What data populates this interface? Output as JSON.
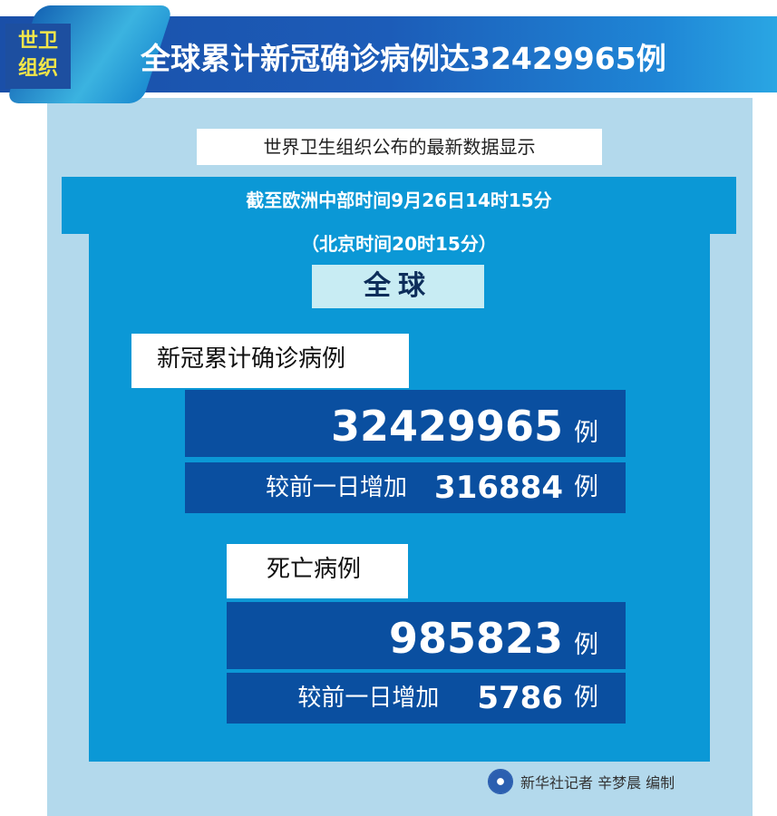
{
  "header": {
    "badge_line1": "世卫",
    "badge_line2": "组织",
    "title": "全球累计新冠确诊病例达32429965例"
  },
  "subtitle": "世界卫生组织公布的最新数据显示",
  "time": {
    "line1": "截至欧洲中部时间9月26日14时15分",
    "line2": "（北京时间20时15分）"
  },
  "region": "全球",
  "cases": {
    "label": "新冠累计确诊病例",
    "total": "32429965",
    "unit": "例",
    "increase_label": "较前一日增加",
    "increase": "316884"
  },
  "deaths": {
    "label": "死亡病例",
    "total": "985823",
    "unit": "例",
    "increase_label": "较前一日增加",
    "increase": "5786"
  },
  "footer": {
    "credit": "新华社记者 辛梦晨 编制",
    "logo_icon": "xinhua-logo-icon"
  },
  "colors": {
    "banner": "#1a4fa8",
    "panel": "#b3d9ec",
    "inner": "#0b98d6",
    "number_box": "#0a4fa0",
    "badge_text": "#f2e64a"
  }
}
